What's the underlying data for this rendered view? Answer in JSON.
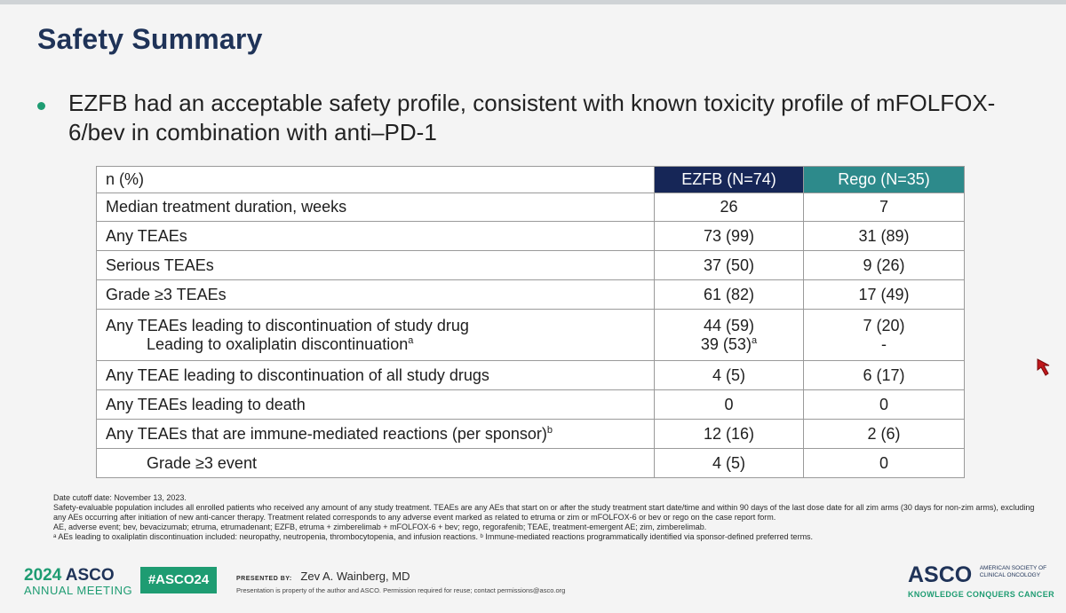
{
  "slide": {
    "title": "Safety Summary",
    "bullet": "EZFB had an acceptable safety profile, consistent with known toxicity profile of mFOLFOX-6/bev in combination with anti–PD-1"
  },
  "table": {
    "header": {
      "label": "n (%)",
      "col_a": "EZFB (N=74)",
      "col_b": "Rego (N=35)"
    },
    "rows": [
      {
        "label": "Median treatment duration, weeks",
        "a": "26",
        "b": "7"
      },
      {
        "label": "Any TEAEs",
        "a": "73 (99)",
        "b": "31 (89)"
      },
      {
        "label": "Serious TEAEs",
        "a": "37 (50)",
        "b": "9 (26)"
      },
      {
        "label": "Grade ≥3 TEAEs",
        "a": "61 (82)",
        "b": "17 (49)"
      },
      {
        "label": "Any TEAEs leading to discontinuation of study drug",
        "a": "44 (59)",
        "b": "7 (20)",
        "sublabel": "Leading to oxaliplatin discontinuation",
        "sublabel_sup": "a",
        "sub_a": "39 (53)",
        "sub_a_sup": "a",
        "sub_b": "-"
      },
      {
        "label": "Any TEAE leading to discontinuation of all study drugs",
        "a": "4 (5)",
        "b": "6 (17)"
      },
      {
        "label": "Any TEAEs leading to death",
        "a": "0",
        "b": "0"
      },
      {
        "label": "Any TEAEs that are immune-mediated reactions (per sponsor)",
        "label_sup": "b",
        "a": "12 (16)",
        "b": "2 (6)"
      },
      {
        "label": "Grade ≥3 event",
        "a": "4 (5)",
        "b": "0"
      }
    ]
  },
  "footnotes": {
    "line1": "Date cutoff date: November 13, 2023.",
    "line2": "Safety-evaluable population includes all enrolled patients who received any amount of any study treatment. TEAEs are any AEs that start on or after the study treatment start date/time and within 90 days of the last dose date for all zim arms (30 days for non-zim arms), excluding any AEs occurring after initiation of new anti-cancer therapy. Treatment related corresponds to any adverse event marked as related to etruma or zim or mFOLFOX-6 or bev or rego on the case report form.",
    "line3": "AE, adverse event; bev, bevacizumab; etruma, etrumadenant; EZFB, etruma + zimberelimab + mFOLFOX-6 + bev; rego, regorafenib; TEAE, treatment-emergent AE; zim, zimberelimab.",
    "line4": "ᵃ AEs leading to oxaliplatin discontinuation included: neuropathy, neutropenia, thrombocytopenia, and infusion reactions. ᵇ Immune-mediated reactions programmatically identified via sponsor-defined preferred terms."
  },
  "footer": {
    "meeting_year": "2024",
    "meeting_name": "ASCO",
    "meeting_sub": "ANNUAL MEETING",
    "hashtag": "#ASCO24",
    "presented_label": "PRESENTED BY:",
    "presenter": "Zev A. Wainberg, MD",
    "property_note": "Presentation is property of the author and ASCO. Permission required for reuse; contact permissions@asco.org",
    "org_name": "ASCO",
    "org_full": "AMERICAN SOCIETY OF CLINICAL ONCOLOGY",
    "org_tagline": "KNOWLEDGE CONQUERS CANCER"
  },
  "colors": {
    "title": "#1f3358",
    "bullet": "#1e9c72",
    "ezfb_header": "#162657",
    "rego_header": "#2d8a8b",
    "cursor": "#c0181c"
  }
}
